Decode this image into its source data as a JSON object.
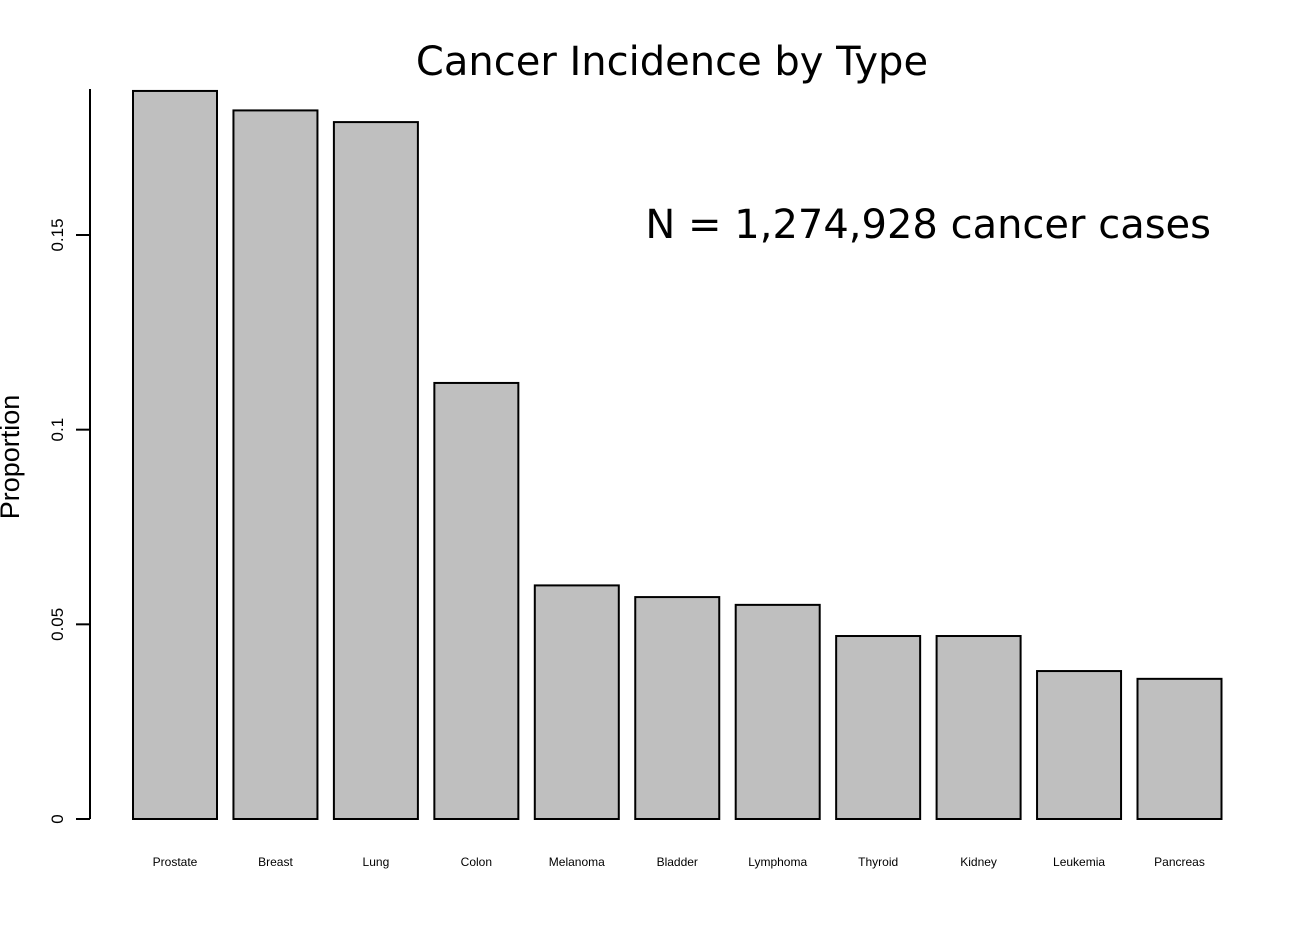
{
  "chart_data": {
    "type": "bar",
    "title": "Cancer Incidence by Type",
    "annotation": "N = 1,274,928 cancer cases",
    "xlabel": "",
    "ylabel": "Proportion",
    "ylim": [
      0,
      0.1875
    ],
    "yticks": [
      0,
      0.05,
      0.1,
      0.15
    ],
    "ytick_labels": [
      "0",
      "0.05",
      "0.1",
      "0.15"
    ],
    "categories": [
      "Prostate",
      "Breast",
      "Lung",
      "Colon",
      "Melanoma",
      "Bladder",
      "Lymphoma",
      "Thyroid",
      "Kidney",
      "Leukemia",
      "Pancreas"
    ],
    "values": [
      0.187,
      0.182,
      0.179,
      0.112,
      0.06,
      0.057,
      0.055,
      0.047,
      0.047,
      0.038,
      0.036
    ],
    "bar_color": "#bfbfbf",
    "edge_color": "#000000",
    "grid": false,
    "legend": "none"
  }
}
